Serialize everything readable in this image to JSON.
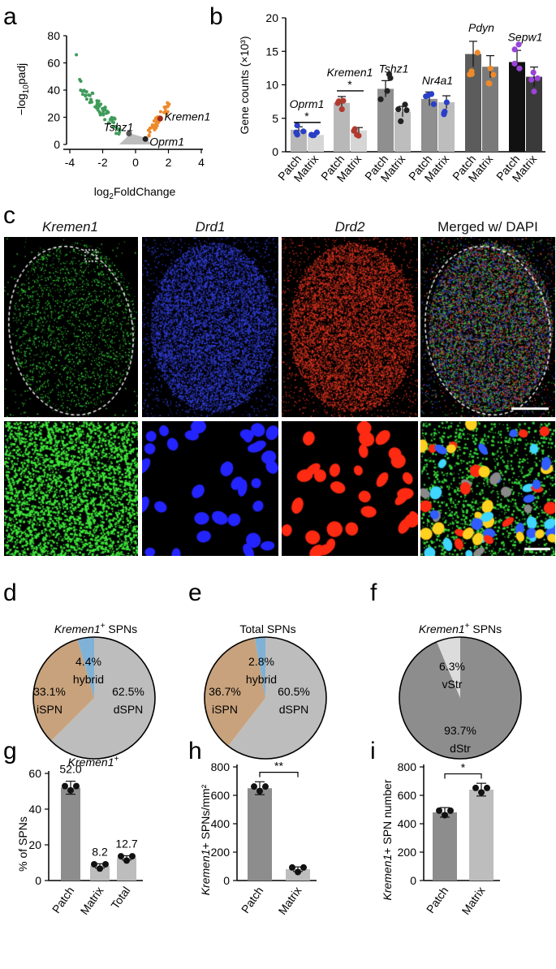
{
  "panel_labels": {
    "a": "a",
    "b": "b",
    "c": "c",
    "d": "d",
    "e": "e",
    "f": "f",
    "g": "g",
    "h": "h",
    "i": "i"
  },
  "colors": {
    "green": "#3f9b5a",
    "orange": "#ee8a2a",
    "grey": "#bdbdbd",
    "dark_red": "#9e2a1b",
    "tan": "#c8a27c",
    "blue_slice": "#7fb2d6",
    "light_grey": "#bdbdbd",
    "mid_grey": "#9a9a9a",
    "blue_dot": "#3a4bd0",
    "red_dot": "#b93a2e",
    "purple": "#9b44d8"
  },
  "chart_data": [
    {
      "id": "a",
      "type": "scatter",
      "xlabel": "log2FoldChange",
      "ylabel": "−log10padj",
      "xlim": [
        -4,
        4
      ],
      "ylim": [
        0,
        80
      ],
      "xticks": [
        "-4",
        "-2",
        "0",
        "2",
        "4"
      ],
      "yticks": [
        "0",
        "20",
        "40",
        "60",
        "80"
      ],
      "annotations": [
        "Kremen1",
        "Tshz1",
        "Oprm1"
      ],
      "highlighted": [
        {
          "name": "Kremen1",
          "x": 1.5,
          "y": 19
        },
        {
          "name": "Tshz1",
          "x": -0.4,
          "y": 8
        },
        {
          "name": "Oprm1",
          "x": 0.6,
          "y": 4
        }
      ]
    },
    {
      "id": "b",
      "type": "bar",
      "ylabel": "Gene counts (×10³)",
      "ylim": [
        0,
        20
      ],
      "yticks": [
        "0",
        "5",
        "10",
        "15",
        "20"
      ],
      "xtick_labels": [
        "Patch",
        "Matrix"
      ],
      "groups": [
        {
          "gene": "Oprm1",
          "patch": 3.3,
          "matrix": 2.5,
          "sig": "*"
        },
        {
          "gene": "Kremen1",
          "patch": 7.3,
          "matrix": 3.2,
          "sig": "*"
        },
        {
          "gene": "Tshz1",
          "patch": 9.4,
          "matrix": 6.0,
          "sig": ""
        },
        {
          "gene": "Nr4a1",
          "patch": 7.9,
          "matrix": 7.4,
          "sig": ""
        },
        {
          "gene": "Pdyn",
          "patch": 14.6,
          "matrix": 12.7,
          "sig": ""
        },
        {
          "gene": "Sepw1",
          "patch": 13.4,
          "matrix": 11.2,
          "sig": ""
        }
      ]
    },
    {
      "id": "d",
      "type": "pie",
      "title_italic": "Kremen1",
      "title_sup": "+",
      "title_rest": " SPNs",
      "slices": [
        {
          "label": "dSPN",
          "value": 62.5,
          "text": "62.5%"
        },
        {
          "label": "iSPN",
          "value": 33.1,
          "text": "33.1%"
        },
        {
          "label": "hybrid",
          "value": 4.4,
          "text": "4.4%"
        }
      ]
    },
    {
      "id": "e",
      "type": "pie",
      "title": "Total SPNs",
      "slices": [
        {
          "label": "dSPN",
          "value": 60.5,
          "text": "60.5%"
        },
        {
          "label": "iSPN",
          "value": 36.7,
          "text": "36.7%"
        },
        {
          "label": "hybrid",
          "value": 2.8,
          "text": "2.8%"
        }
      ]
    },
    {
      "id": "f",
      "type": "pie",
      "title_italic": "Kremen1",
      "title_sup": "+",
      "title_rest": " SPNs",
      "slices": [
        {
          "label": "dStr",
          "value": 93.7,
          "text": "93.7%"
        },
        {
          "label": "vStr",
          "value": 6.3,
          "text": "6.3%"
        }
      ]
    },
    {
      "id": "g",
      "type": "bar",
      "title_italic": "Kremen1",
      "title_sup": "+",
      "ylabel": "% of SPNs",
      "ylim": [
        0,
        60
      ],
      "yticks": [
        "0",
        "20",
        "40",
        "60"
      ],
      "categories": [
        "Patch",
        "Matrix",
        "Total"
      ],
      "values": [
        52.0,
        8.2,
        12.7
      ],
      "value_labels": [
        "52.0",
        "8.2",
        "12.7"
      ]
    },
    {
      "id": "h",
      "type": "bar",
      "ylabel_italic": "Kremen1",
      "ylabel_rest": "+ SPNs/mm²",
      "ylim": [
        0,
        800
      ],
      "yticks": [
        "0",
        "200",
        "400",
        "600",
        "800"
      ],
      "categories": [
        "Patch",
        "Matrix"
      ],
      "values": [
        650,
        80
      ],
      "sig": "**"
    },
    {
      "id": "i",
      "type": "bar",
      "ylabel_italic": "Kremen1",
      "ylabel_rest": "+ SPN number",
      "ylim": [
        0,
        800
      ],
      "yticks": [
        "0",
        "200",
        "400",
        "600",
        "800"
      ],
      "categories": [
        "Patch",
        "Matrix"
      ],
      "values": [
        480,
        640
      ],
      "sig": "*"
    }
  ],
  "micrograph_titles": {
    "t1": "Kremen1",
    "t2": "Drd1",
    "t3": "Drd2",
    "t4": "Merged w/ DAPI"
  }
}
